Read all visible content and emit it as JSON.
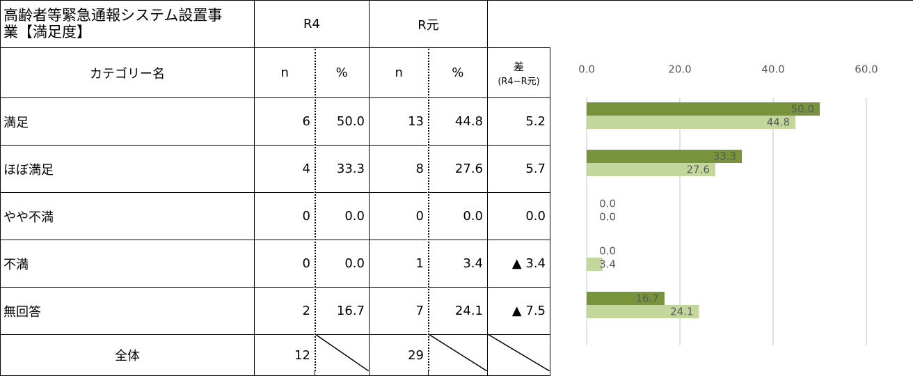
{
  "table": {
    "title": "高齢者等緊急通報システム設置事業【満足度】",
    "groups": [
      "R4",
      "R元"
    ],
    "columns": [
      "カテゴリー名",
      "n",
      "%",
      "n",
      "%"
    ],
    "diff_header": "差",
    "diff_sub": "(R4−R元)",
    "rows": [
      [
        "満足",
        "6",
        "50.0",
        "13",
        "44.8",
        "5.2"
      ],
      [
        "ほぼ満足",
        "4",
        "33.3",
        "8",
        "27.6",
        "5.7"
      ],
      [
        "やや不満",
        "0",
        "0.0",
        "0",
        "0.0",
        "0.0"
      ],
      [
        "不満",
        "0",
        "0.0",
        "1",
        "3.4",
        "▲ 3.4"
      ],
      [
        "無回答",
        "2",
        "16.7",
        "7",
        "24.1",
        "▲ 7.5"
      ]
    ],
    "total": {
      "label": "全体",
      "r4_n": "12",
      "r1_n": "29"
    }
  },
  "chart_data": {
    "type": "bar",
    "orientation": "horizontal",
    "categories": [
      "満足",
      "ほぼ満足",
      "やや不満",
      "不満",
      "無回答"
    ],
    "series": [
      {
        "color": "#77933c",
        "values": [
          50.0,
          33.3,
          0.0,
          0.0,
          16.7
        ],
        "value_labels": [
          "50.0",
          "33.3",
          "0.0",
          "0.0",
          "16.7"
        ]
      },
      {
        "color": "#c3d69b",
        "values": [
          44.8,
          27.6,
          0.0,
          3.4,
          24.1
        ],
        "value_labels": [
          "44.8",
          "27.6",
          "0.0",
          "3.4",
          "24.1"
        ]
      }
    ],
    "xlim": [
      0,
      60
    ],
    "xticks": [
      {
        "value": 0,
        "label": "0.0"
      },
      {
        "value": 20,
        "label": "20.0"
      },
      {
        "value": 40,
        "label": "40.0"
      },
      {
        "value": 60,
        "label": "60.0"
      }
    ],
    "grid": true
  }
}
